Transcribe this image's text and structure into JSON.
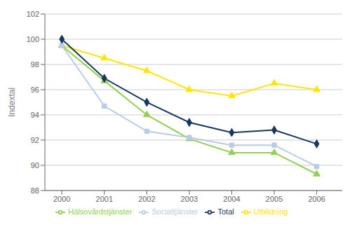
{
  "chart_data": {
    "type": "line",
    "x": [
      2000,
      2001,
      2002,
      2003,
      2004,
      2005,
      2006
    ],
    "series": [
      {
        "name": "Utbildning",
        "color": "#FFE600",
        "marker": "triangle",
        "values": [
          99.5,
          98.5,
          97.5,
          96.0,
          95.5,
          96.5,
          96.0
        ]
      },
      {
        "name": "Hälsovårdstjänster",
        "color": "#92D050",
        "marker": "triangle",
        "values": [
          99.5,
          96.7,
          94.0,
          92.1,
          91.0,
          91.0,
          89.3
        ]
      },
      {
        "name": "Socialtjänster",
        "color": "#B8CCE4",
        "marker": "square",
        "values": [
          99.5,
          94.7,
          92.7,
          92.2,
          91.6,
          91.6,
          89.9
        ]
      },
      {
        "name": "Total",
        "color": "#17375E",
        "marker": "diamond",
        "values": [
          100.0,
          96.9,
          95.0,
          93.4,
          92.6,
          92.8,
          91.7
        ]
      }
    ],
    "ylabel": "Indextal",
    "xlim": [
      1999.6,
      2006.6
    ],
    "xticks": [
      2000,
      2001,
      2002,
      2003,
      2004,
      2005,
      2006
    ],
    "ylim": [
      88,
      102
    ],
    "yticks": [
      88,
      90,
      92,
      94,
      96,
      98,
      100,
      102
    ],
    "grid": true,
    "legend": "bottom"
  }
}
